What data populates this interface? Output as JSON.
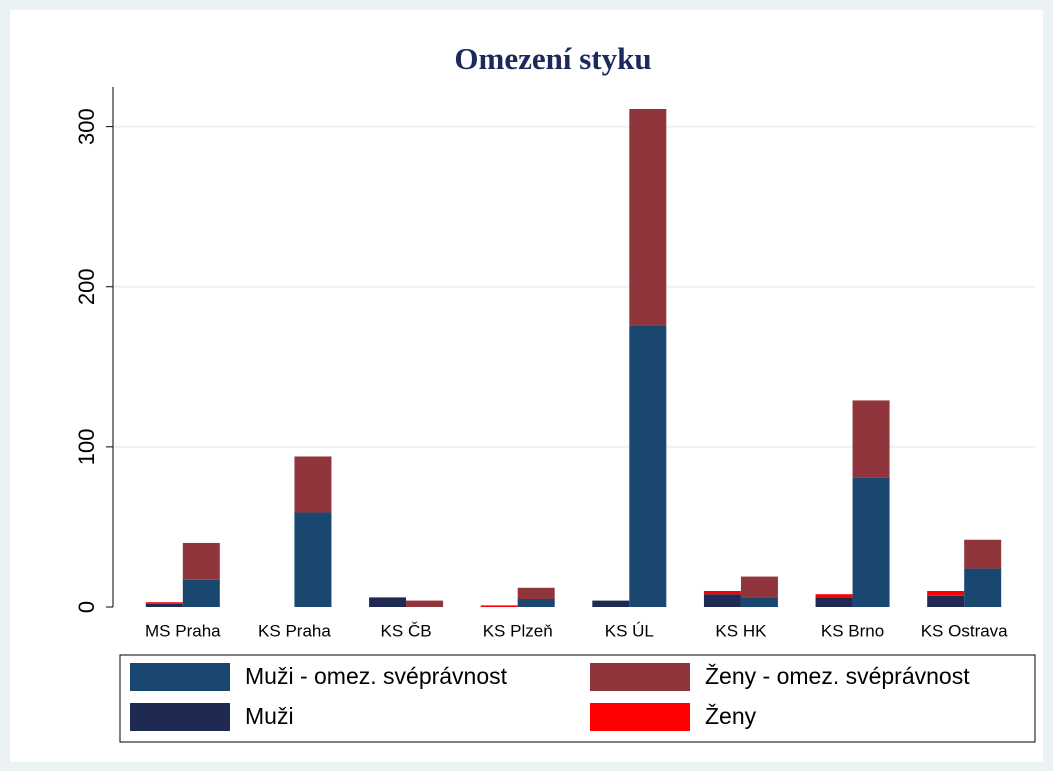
{
  "chart_data": {
    "type": "bar",
    "title": "Omezení styku",
    "categories": [
      "MS Praha",
      "KS Praha",
      "KS ČB",
      "KS Plzeň",
      "KS ÚL",
      "KS HK",
      "KS Brno",
      "KS Ostrava"
    ],
    "series": [
      {
        "name": "Muži - omez. svéprávnost",
        "color": "#1a476f",
        "values": [
          17,
          59,
          0,
          5,
          176,
          6,
          81,
          24
        ]
      },
      {
        "name": "Ženy - omez. svéprávnost",
        "color": "#90353b",
        "values": [
          23,
          35,
          4,
          7,
          135,
          13,
          48,
          18
        ]
      },
      {
        "name": "Muži",
        "color": "#1f2a52",
        "values": [
          2,
          0,
          6,
          0,
          4,
          8,
          6,
          7
        ]
      },
      {
        "name": "Ženy",
        "color": "#ff0000",
        "values": [
          1,
          0,
          0,
          1,
          0,
          2,
          2,
          3
        ]
      }
    ],
    "stacked": true,
    "ylim": [
      0,
      311
    ],
    "yticks": [
      0,
      100,
      200,
      300
    ],
    "grid": true
  }
}
